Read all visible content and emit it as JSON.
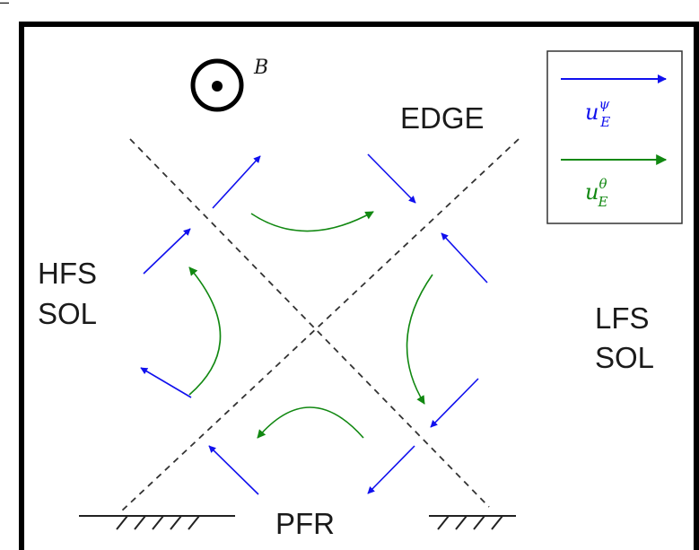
{
  "labels": {
    "edge": "EDGE",
    "hfs_line1": "HFS",
    "hfs_line2": "SOL",
    "lfs_line1": "LFS",
    "lfs_line2": "SOL",
    "pfr": "PFR",
    "bfield": "B"
  },
  "legend": {
    "radial": {
      "base": "u",
      "sup": "ψ",
      "sub": "E"
    },
    "poloidal": {
      "base": "u",
      "sup": "θ",
      "sub": "E"
    }
  },
  "colors": {
    "radial_drift": "#1010ee",
    "poloidal_drift": "#118811",
    "frame": "#000000",
    "separatrix": "#333333"
  }
}
